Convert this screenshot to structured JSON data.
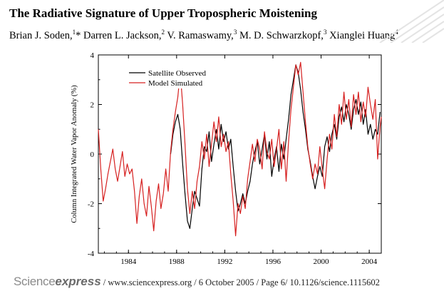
{
  "paper": {
    "title": "The Radiative Signature of Upper Tropospheric Moistening",
    "authors": [
      {
        "name": "Brian J. Soden,",
        "sup": "1",
        "suffix": "*"
      },
      {
        "name": "Darren L. Jackson,",
        "sup": "2",
        "suffix": ""
      },
      {
        "name": "V. Ramaswamy,",
        "sup": "3",
        "suffix": ""
      },
      {
        "name": "M. D. Schwarzkopf,",
        "sup": "3",
        "suffix": ""
      },
      {
        "name": "Xianglei Huang",
        "sup": "4",
        "suffix": ""
      }
    ]
  },
  "footer": {
    "logo_part1": "Science",
    "logo_part2": "express",
    "text": "/ www.sciencexpress.org / 6 October 2005 / Page 6/ 10.1126/science.1115602"
  },
  "chart_data": {
    "type": "line",
    "title": "",
    "xlabel": "",
    "ylabel": "Column Integrated Water Vapor Anomaly  (%)",
    "xlim": [
      1981.5,
      2005.0
    ],
    "ylim": [
      -4,
      4
    ],
    "xticks": [
      1984,
      1988,
      1992,
      1996,
      2000,
      2004
    ],
    "yticks": [
      -4,
      -2,
      0,
      2,
      4
    ],
    "legend": {
      "position": "top-left"
    },
    "series": [
      {
        "name": "Satellite Observed",
        "color": "#000000",
        "points": [
          [
            1987.5,
            0.0
          ],
          [
            1987.7,
            0.8
          ],
          [
            1987.9,
            1.3
          ],
          [
            1988.1,
            1.6
          ],
          [
            1988.3,
            1.0
          ],
          [
            1988.5,
            -0.4
          ],
          [
            1988.7,
            -1.6
          ],
          [
            1988.9,
            -2.7
          ],
          [
            1989.1,
            -3.0
          ],
          [
            1989.3,
            -2.2
          ],
          [
            1989.5,
            -1.5
          ],
          [
            1989.7,
            -1.8
          ],
          [
            1989.9,
            -2.1
          ],
          [
            1990.1,
            -0.6
          ],
          [
            1990.3,
            0.3
          ],
          [
            1990.5,
            0.1
          ],
          [
            1990.7,
            0.9
          ],
          [
            1990.9,
            -0.3
          ],
          [
            1991.1,
            0.4
          ],
          [
            1991.3,
            1.0
          ],
          [
            1991.5,
            0.2
          ],
          [
            1991.7,
            1.2
          ],
          [
            1991.9,
            0.5
          ],
          [
            1992.1,
            0.9
          ],
          [
            1992.3,
            0.2
          ],
          [
            1992.5,
            0.6
          ],
          [
            1992.7,
            -0.5
          ],
          [
            1992.9,
            -1.5
          ],
          [
            1993.1,
            -2.3
          ],
          [
            1993.3,
            -2.0
          ],
          [
            1993.5,
            -1.6
          ],
          [
            1993.7,
            -2.0
          ],
          [
            1993.9,
            -1.5
          ],
          [
            1994.1,
            -1.1
          ],
          [
            1994.3,
            -0.4
          ],
          [
            1994.5,
            0.1
          ],
          [
            1994.7,
            0.5
          ],
          [
            1994.9,
            -0.4
          ],
          [
            1995.1,
            0.2
          ],
          [
            1995.3,
            0.8
          ],
          [
            1995.5,
            -0.2
          ],
          [
            1995.7,
            0.5
          ],
          [
            1995.9,
            -0.9
          ],
          [
            1996.1,
            -0.2
          ],
          [
            1996.3,
            0.3
          ],
          [
            1996.5,
            -0.7
          ],
          [
            1996.7,
            0.4
          ],
          [
            1996.9,
            -0.2
          ],
          [
            1997.1,
            0.6
          ],
          [
            1997.3,
            1.4
          ],
          [
            1997.5,
            2.4
          ],
          [
            1997.7,
            3.0
          ],
          [
            1997.9,
            3.6
          ],
          [
            1998.1,
            3.3
          ],
          [
            1998.3,
            2.6
          ],
          [
            1998.5,
            1.7
          ],
          [
            1998.7,
            1.0
          ],
          [
            1998.9,
            0.2
          ],
          [
            1999.1,
            -0.3
          ],
          [
            1999.3,
            -0.9
          ],
          [
            1999.5,
            -1.4
          ],
          [
            1999.7,
            -0.9
          ],
          [
            1999.9,
            -0.5
          ],
          [
            2000.1,
            -0.9
          ],
          [
            2000.3,
            0.3
          ],
          [
            2000.5,
            0.7
          ],
          [
            2000.7,
            0.1
          ],
          [
            2000.9,
            0.8
          ],
          [
            2001.1,
            1.2
          ],
          [
            2001.3,
            0.6
          ],
          [
            2001.5,
            1.5
          ],
          [
            2001.7,
            1.9
          ],
          [
            2001.9,
            1.3
          ],
          [
            2002.1,
            2.0
          ],
          [
            2002.3,
            1.6
          ],
          [
            2002.5,
            1.0
          ],
          [
            2002.7,
            1.8
          ],
          [
            2002.9,
            2.2
          ],
          [
            2003.1,
            1.6
          ],
          [
            2003.3,
            2.1
          ],
          [
            2003.5,
            1.2
          ],
          [
            2003.7,
            1.8
          ],
          [
            2003.9,
            0.8
          ],
          [
            2004.1,
            1.2
          ],
          [
            2004.3,
            0.6
          ],
          [
            2004.5,
            1.0
          ],
          [
            2004.7,
            0.8
          ],
          [
            2004.9,
            1.7
          ]
        ]
      },
      {
        "name": "Model Simulated",
        "color": "#d62020",
        "points": [
          [
            1981.5,
            1.0
          ],
          [
            1981.7,
            -0.6
          ],
          [
            1981.9,
            -1.9
          ],
          [
            1982.1,
            -1.4
          ],
          [
            1982.3,
            -0.8
          ],
          [
            1982.5,
            -0.3
          ],
          [
            1982.7,
            0.2
          ],
          [
            1982.9,
            -0.6
          ],
          [
            1983.1,
            -1.1
          ],
          [
            1983.3,
            -0.5
          ],
          [
            1983.5,
            0.1
          ],
          [
            1983.7,
            -0.9
          ],
          [
            1983.9,
            -0.4
          ],
          [
            1984.1,
            -0.8
          ],
          [
            1984.3,
            -0.6
          ],
          [
            1984.5,
            -1.5
          ],
          [
            1984.7,
            -2.8
          ],
          [
            1984.9,
            -1.7
          ],
          [
            1985.1,
            -1.0
          ],
          [
            1985.3,
            -2.0
          ],
          [
            1985.5,
            -2.5
          ],
          [
            1985.7,
            -1.3
          ],
          [
            1985.9,
            -2.1
          ],
          [
            1986.1,
            -3.1
          ],
          [
            1986.3,
            -1.9
          ],
          [
            1986.5,
            -1.2
          ],
          [
            1986.7,
            -2.2
          ],
          [
            1986.9,
            -1.6
          ],
          [
            1987.1,
            -0.6
          ],
          [
            1987.3,
            -1.5
          ],
          [
            1987.5,
            0.1
          ],
          [
            1987.7,
            1.0
          ],
          [
            1987.9,
            1.7
          ],
          [
            1988.1,
            2.3
          ],
          [
            1988.3,
            3.3
          ],
          [
            1988.5,
            2.0
          ],
          [
            1988.7,
            0.4
          ],
          [
            1988.9,
            -1.4
          ],
          [
            1989.1,
            -2.4
          ],
          [
            1989.3,
            -1.5
          ],
          [
            1989.5,
            -2.2
          ],
          [
            1989.7,
            -1.1
          ],
          [
            1989.9,
            -0.5
          ],
          [
            1990.1,
            0.5
          ],
          [
            1990.3,
            -0.2
          ],
          [
            1990.5,
            0.8
          ],
          [
            1990.7,
            -0.5
          ],
          [
            1990.9,
            0.4
          ],
          [
            1991.1,
            1.3
          ],
          [
            1991.3,
            0.5
          ],
          [
            1991.5,
            1.5
          ],
          [
            1991.7,
            0.3
          ],
          [
            1991.9,
            0.8
          ],
          [
            1992.1,
            0.1
          ],
          [
            1992.3,
            0.5
          ],
          [
            1992.5,
            -0.8
          ],
          [
            1992.7,
            -1.9
          ],
          [
            1992.9,
            -3.3
          ],
          [
            1993.1,
            -2.0
          ],
          [
            1993.3,
            -2.4
          ],
          [
            1993.5,
            -1.7
          ],
          [
            1993.7,
            -2.2
          ],
          [
            1993.9,
            -1.0
          ],
          [
            1994.1,
            -0.3
          ],
          [
            1994.3,
            0.4
          ],
          [
            1994.5,
            -0.3
          ],
          [
            1994.7,
            0.6
          ],
          [
            1994.9,
            0.2
          ],
          [
            1995.1,
            -0.6
          ],
          [
            1995.3,
            0.9
          ],
          [
            1995.5,
            0.1
          ],
          [
            1995.7,
            -0.2
          ],
          [
            1995.9,
            0.6
          ],
          [
            1996.1,
            -0.5
          ],
          [
            1996.3,
            0.2
          ],
          [
            1996.5,
            1.0
          ],
          [
            1996.7,
            -0.6
          ],
          [
            1996.9,
            0.5
          ],
          [
            1997.1,
            -1.1
          ],
          [
            1997.3,
            0.5
          ],
          [
            1997.5,
            1.8
          ],
          [
            1997.7,
            2.7
          ],
          [
            1997.9,
            3.6
          ],
          [
            1998.1,
            3.2
          ],
          [
            1998.3,
            3.7
          ],
          [
            1998.5,
            2.5
          ],
          [
            1998.7,
            1.3
          ],
          [
            1998.9,
            0.3
          ],
          [
            1999.1,
            -0.4
          ],
          [
            1999.3,
            -1.0
          ],
          [
            1999.5,
            -0.4
          ],
          [
            1999.7,
            -0.8
          ],
          [
            1999.9,
            0.3
          ],
          [
            2000.1,
            -0.6
          ],
          [
            2000.3,
            -1.4
          ],
          [
            2000.5,
            -0.2
          ],
          [
            2000.7,
            0.8
          ],
          [
            2000.9,
            0.2
          ],
          [
            2001.1,
            1.6
          ],
          [
            2001.3,
            0.7
          ],
          [
            2001.5,
            2.0
          ],
          [
            2001.7,
            1.2
          ],
          [
            2001.9,
            2.5
          ],
          [
            2002.1,
            1.4
          ],
          [
            2002.3,
            2.2
          ],
          [
            2002.5,
            1.1
          ],
          [
            2002.7,
            2.4
          ],
          [
            2002.9,
            1.6
          ],
          [
            2003.1,
            2.5
          ],
          [
            2003.3,
            1.3
          ],
          [
            2003.5,
            2.1
          ],
          [
            2003.7,
            1.5
          ],
          [
            2003.9,
            2.7
          ],
          [
            2004.1,
            2.0
          ],
          [
            2004.3,
            1.4
          ],
          [
            2004.5,
            2.2
          ],
          [
            2004.7,
            -0.2
          ],
          [
            2004.9,
            1.1
          ],
          [
            2005.0,
            1.5
          ]
        ]
      }
    ]
  }
}
